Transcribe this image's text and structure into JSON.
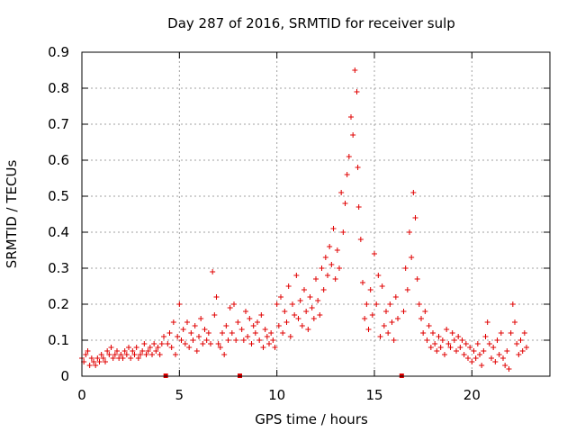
{
  "chart_data": {
    "type": "scatter",
    "title": "Day 287 of 2016, SRMTID for receiver sulp",
    "xlabel": "GPS time / hours",
    "ylabel": "SRMTID / TECUs",
    "xlim": [
      0,
      24
    ],
    "ylim": [
      0,
      0.9
    ],
    "xticks": [
      0,
      5,
      10,
      15,
      20
    ],
    "xtick_labels": [
      "0",
      "5",
      "10",
      "15",
      "20"
    ],
    "yticks": [
      0,
      0.1,
      0.2,
      0.3,
      0.4,
      0.5,
      0.6,
      0.7,
      0.8,
      0.9
    ],
    "ytick_labels": [
      "0",
      "0.1",
      "0.2",
      "0.3",
      "0.4",
      "0.5",
      "0.6",
      "0.7",
      "0.8",
      "0.9"
    ],
    "grid": true,
    "marker": "+",
    "color": "#e00000",
    "data_gap_markers_x": [
      4.3,
      8.1,
      16.4
    ],
    "series": [
      {
        "name": "SRMTID",
        "x": [
          0.0,
          0.1,
          0.2,
          0.3,
          0.4,
          0.5,
          0.6,
          0.7,
          0.8,
          0.9,
          1.0,
          1.1,
          1.2,
          1.3,
          1.4,
          1.5,
          1.6,
          1.7,
          1.8,
          1.9,
          2.0,
          2.1,
          2.2,
          2.3,
          2.4,
          2.5,
          2.6,
          2.7,
          2.8,
          2.9,
          3.0,
          3.1,
          3.2,
          3.3,
          3.4,
          3.5,
          3.6,
          3.7,
          3.8,
          3.9,
          4.0,
          4.1,
          4.2,
          4.4,
          4.5,
          4.6,
          4.7,
          4.8,
          4.9,
          5.0,
          5.1,
          5.2,
          5.3,
          5.4,
          5.5,
          5.6,
          5.7,
          5.8,
          5.9,
          6.0,
          6.1,
          6.2,
          6.3,
          6.4,
          6.5,
          6.6,
          6.7,
          6.8,
          6.9,
          7.0,
          7.1,
          7.2,
          7.3,
          7.4,
          7.5,
          7.6,
          7.7,
          7.8,
          7.9,
          8.0,
          8.2,
          8.3,
          8.4,
          8.5,
          8.6,
          8.7,
          8.8,
          8.9,
          9.0,
          9.1,
          9.2,
          9.3,
          9.4,
          9.5,
          9.6,
          9.7,
          9.8,
          9.9,
          10.0,
          10.1,
          10.2,
          10.3,
          10.4,
          10.5,
          10.6,
          10.7,
          10.8,
          10.9,
          11.0,
          11.1,
          11.2,
          11.3,
          11.4,
          11.5,
          11.6,
          11.7,
          11.8,
          11.9,
          12.0,
          12.1,
          12.2,
          12.3,
          12.4,
          12.5,
          12.6,
          12.7,
          12.8,
          12.9,
          13.0,
          13.1,
          13.2,
          13.3,
          13.4,
          13.5,
          13.6,
          13.7,
          13.8,
          13.9,
          14.0,
          14.1,
          14.15,
          14.2,
          14.3,
          14.4,
          14.5,
          14.6,
          14.7,
          14.8,
          14.9,
          15.0,
          15.1,
          15.2,
          15.3,
          15.4,
          15.5,
          15.6,
          15.7,
          15.8,
          15.9,
          16.0,
          16.1,
          16.2,
          16.5,
          16.6,
          16.7,
          16.8,
          16.9,
          17.0,
          17.1,
          17.2,
          17.3,
          17.4,
          17.5,
          17.6,
          17.7,
          17.8,
          17.9,
          18.0,
          18.1,
          18.2,
          18.3,
          18.4,
          18.5,
          18.6,
          18.7,
          18.8,
          18.9,
          19.0,
          19.1,
          19.2,
          19.3,
          19.4,
          19.5,
          19.6,
          19.7,
          19.8,
          19.9,
          20.0,
          20.1,
          20.2,
          20.3,
          20.4,
          20.5,
          20.6,
          20.7,
          20.8,
          20.9,
          21.0,
          21.1,
          21.2,
          21.3,
          21.4,
          21.5,
          21.6,
          21.7,
          21.8,
          21.9,
          22.0,
          22.1,
          22.2,
          22.3,
          22.4,
          22.5,
          22.6,
          22.7,
          22.8
        ],
        "y": [
          0.05,
          0.04,
          0.06,
          0.07,
          0.03,
          0.05,
          0.04,
          0.03,
          0.05,
          0.04,
          0.06,
          0.05,
          0.04,
          0.07,
          0.06,
          0.08,
          0.05,
          0.06,
          0.07,
          0.05,
          0.06,
          0.05,
          0.07,
          0.06,
          0.08,
          0.05,
          0.07,
          0.06,
          0.08,
          0.05,
          0.06,
          0.07,
          0.09,
          0.06,
          0.07,
          0.08,
          0.06,
          0.09,
          0.07,
          0.08,
          0.06,
          0.09,
          0.11,
          0.09,
          0.12,
          0.08,
          0.15,
          0.06,
          0.11,
          0.2,
          0.1,
          0.13,
          0.09,
          0.15,
          0.08,
          0.12,
          0.1,
          0.14,
          0.07,
          0.11,
          0.16,
          0.09,
          0.13,
          0.1,
          0.12,
          0.09,
          0.29,
          0.17,
          0.22,
          0.09,
          0.08,
          0.12,
          0.06,
          0.14,
          0.1,
          0.19,
          0.12,
          0.2,
          0.1,
          0.15,
          0.13,
          0.1,
          0.18,
          0.11,
          0.16,
          0.09,
          0.14,
          0.12,
          0.15,
          0.1,
          0.17,
          0.08,
          0.13,
          0.11,
          0.09,
          0.12,
          0.1,
          0.08,
          0.2,
          0.14,
          0.22,
          0.12,
          0.18,
          0.15,
          0.25,
          0.11,
          0.2,
          0.17,
          0.28,
          0.16,
          0.21,
          0.14,
          0.24,
          0.18,
          0.13,
          0.22,
          0.19,
          0.16,
          0.27,
          0.21,
          0.17,
          0.3,
          0.24,
          0.33,
          0.28,
          0.36,
          0.31,
          0.41,
          0.27,
          0.35,
          0.3,
          0.51,
          0.4,
          0.48,
          0.56,
          0.61,
          0.72,
          0.67,
          0.85,
          0.79,
          0.58,
          0.47,
          0.38,
          0.26,
          0.16,
          0.2,
          0.13,
          0.24,
          0.17,
          0.34,
          0.2,
          0.28,
          0.11,
          0.25,
          0.14,
          0.18,
          0.12,
          0.2,
          0.15,
          0.1,
          0.22,
          0.16,
          0.18,
          0.3,
          0.24,
          0.4,
          0.33,
          0.51,
          0.44,
          0.27,
          0.2,
          0.16,
          0.12,
          0.18,
          0.1,
          0.14,
          0.08,
          0.12,
          0.09,
          0.07,
          0.11,
          0.08,
          0.1,
          0.06,
          0.13,
          0.09,
          0.08,
          0.12,
          0.1,
          0.07,
          0.11,
          0.08,
          0.1,
          0.06,
          0.09,
          0.05,
          0.08,
          0.04,
          0.07,
          0.05,
          0.09,
          0.06,
          0.03,
          0.07,
          0.11,
          0.15,
          0.09,
          0.05,
          0.08,
          0.04,
          0.1,
          0.06,
          0.12,
          0.05,
          0.03,
          0.07,
          0.02,
          0.12,
          0.2,
          0.15,
          0.09,
          0.06,
          0.1,
          0.07,
          0.12,
          0.08
        ]
      }
    ]
  }
}
